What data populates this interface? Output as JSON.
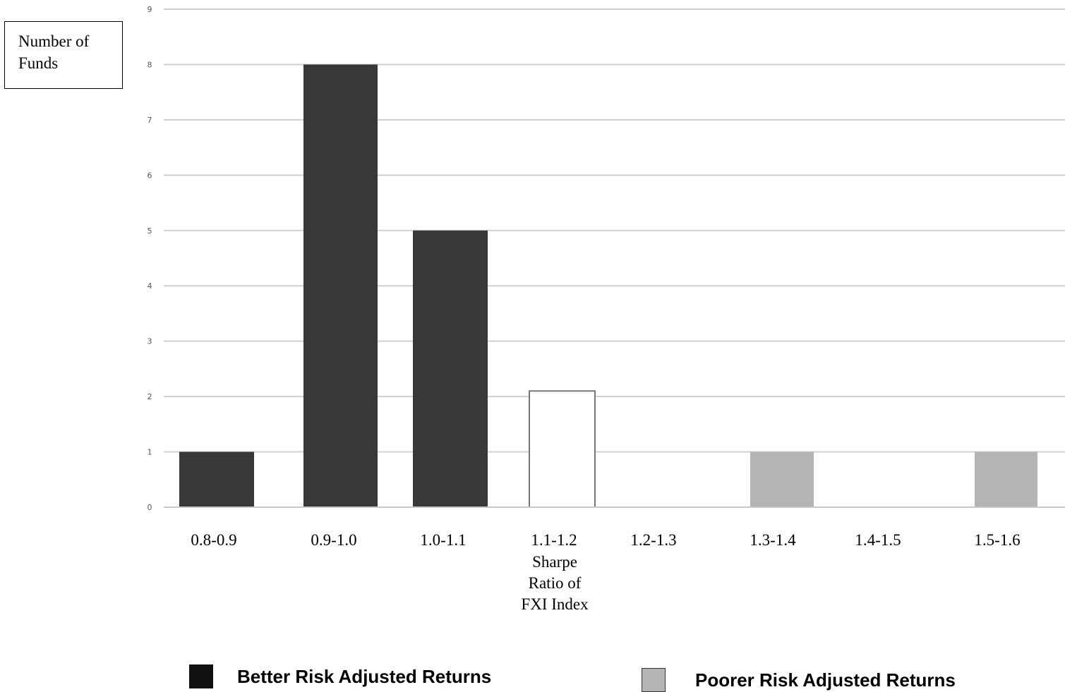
{
  "y_axis_label": [
    "Number of",
    "Funds"
  ],
  "x_axis_label": [
    "Sharpe",
    "Ratio of",
    "FXI Index"
  ],
  "legend": [
    {
      "label": "Better Risk Adjusted Returns",
      "color": "#111111"
    },
    {
      "label": "Poorer Risk Adjusted Returns",
      "color": "#b4b4b4"
    }
  ],
  "chart_data": {
    "type": "bar",
    "categories": [
      "0.8-0.9",
      "0.9-1.0",
      "1.0-1.1",
      "1.1-1.2",
      "1.2-1.3",
      "1.3-1.4",
      "1.4-1.5",
      "1.5-1.6"
    ],
    "values": [
      1,
      8,
      5,
      2.1,
      0,
      1,
      0,
      1
    ],
    "bar_groups": [
      "better",
      "better",
      "better",
      "index",
      "none",
      "poorer",
      "none",
      "poorer"
    ],
    "colors": {
      "better": "#383838",
      "index": "#ffffff",
      "poorer": "#b4b4b4"
    },
    "ylim": [
      0,
      9
    ],
    "yticks": [
      0,
      1,
      2,
      3,
      4,
      5,
      6,
      7,
      8,
      9
    ],
    "grid": true,
    "legend_position": "bottom"
  }
}
